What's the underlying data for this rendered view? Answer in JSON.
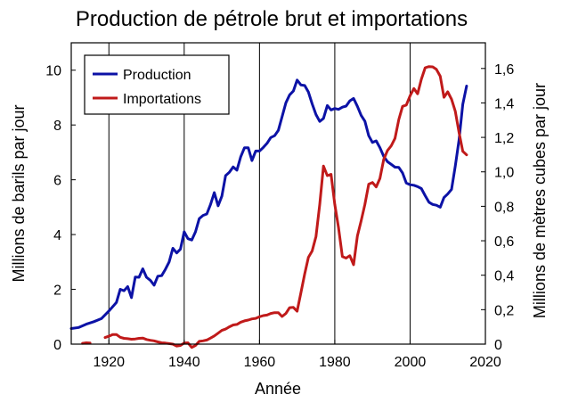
{
  "chart_data": {
    "type": "line",
    "title": "Production de pétrole brut et importations",
    "xlabel": "Année",
    "ylabel": "Millions de barils par jour",
    "ylabel_right": "Millions de mètres cubes par jour",
    "xlim": [
      1910,
      2020
    ],
    "ylim": [
      0,
      11
    ],
    "ylim_right": [
      0,
      1.749
    ],
    "x_ticks": [
      1920,
      1940,
      1960,
      1980,
      2000,
      2020
    ],
    "y_ticks": [
      0,
      2,
      4,
      6,
      8,
      10
    ],
    "y_ticks_right": [
      "0",
      "0,2",
      "0,4",
      "0,6",
      "0,8",
      "1,0",
      "1,2",
      "1,4",
      "1,6"
    ],
    "y_ticks_right_values": [
      0,
      0.2,
      0.4,
      0.6,
      0.8,
      1.0,
      1.2,
      1.4,
      1.6
    ],
    "grid": "x-only",
    "legend_position": "top-left",
    "series": [
      {
        "name": "Production",
        "color": "#0c12a6",
        "points": [
          [
            1910,
            0.57
          ],
          [
            1912,
            0.61
          ],
          [
            1914,
            0.73
          ],
          [
            1916,
            0.82
          ],
          [
            1918,
            0.93
          ],
          [
            1920,
            1.21
          ],
          [
            1922,
            1.52
          ],
          [
            1923,
            2.0
          ],
          [
            1924,
            1.95
          ],
          [
            1925,
            2.1
          ],
          [
            1926,
            1.7
          ],
          [
            1927,
            2.45
          ],
          [
            1928,
            2.44
          ],
          [
            1929,
            2.75
          ],
          [
            1930,
            2.44
          ],
          [
            1931,
            2.33
          ],
          [
            1932,
            2.15
          ],
          [
            1933,
            2.48
          ],
          [
            1934,
            2.5
          ],
          [
            1935,
            2.73
          ],
          [
            1936,
            3.0
          ],
          [
            1937,
            3.5
          ],
          [
            1938,
            3.33
          ],
          [
            1939,
            3.47
          ],
          [
            1940,
            4.1
          ],
          [
            1941,
            3.85
          ],
          [
            1942,
            3.8
          ],
          [
            1943,
            4.1
          ],
          [
            1944,
            4.58
          ],
          [
            1945,
            4.7
          ],
          [
            1946,
            4.75
          ],
          [
            1947,
            5.1
          ],
          [
            1948,
            5.53
          ],
          [
            1949,
            5.05
          ],
          [
            1950,
            5.4
          ],
          [
            1951,
            6.15
          ],
          [
            1952,
            6.27
          ],
          [
            1953,
            6.47
          ],
          [
            1954,
            6.35
          ],
          [
            1955,
            6.83
          ],
          [
            1956,
            7.17
          ],
          [
            1957,
            7.17
          ],
          [
            1958,
            6.7
          ],
          [
            1959,
            7.05
          ],
          [
            1960,
            7.05
          ],
          [
            1961,
            7.18
          ],
          [
            1962,
            7.33
          ],
          [
            1963,
            7.54
          ],
          [
            1964,
            7.61
          ],
          [
            1965,
            7.8
          ],
          [
            1966,
            8.3
          ],
          [
            1967,
            8.81
          ],
          [
            1968,
            9.1
          ],
          [
            1969,
            9.24
          ],
          [
            1970,
            9.64
          ],
          [
            1971,
            9.46
          ],
          [
            1972,
            9.44
          ],
          [
            1973,
            9.2
          ],
          [
            1974,
            8.77
          ],
          [
            1975,
            8.38
          ],
          [
            1976,
            8.13
          ],
          [
            1977,
            8.24
          ],
          [
            1978,
            8.71
          ],
          [
            1979,
            8.55
          ],
          [
            1980,
            8.6
          ],
          [
            1981,
            8.57
          ],
          [
            1982,
            8.65
          ],
          [
            1983,
            8.69
          ],
          [
            1984,
            8.88
          ],
          [
            1985,
            8.97
          ],
          [
            1986,
            8.68
          ],
          [
            1987,
            8.35
          ],
          [
            1988,
            8.14
          ],
          [
            1989,
            7.61
          ],
          [
            1990,
            7.36
          ],
          [
            1991,
            7.42
          ],
          [
            1992,
            7.17
          ],
          [
            1993,
            6.85
          ],
          [
            1994,
            6.66
          ],
          [
            1995,
            6.56
          ],
          [
            1996,
            6.46
          ],
          [
            1997,
            6.45
          ],
          [
            1998,
            6.25
          ],
          [
            1999,
            5.88
          ],
          [
            2000,
            5.82
          ],
          [
            2001,
            5.8
          ],
          [
            2002,
            5.75
          ],
          [
            2003,
            5.68
          ],
          [
            2004,
            5.42
          ],
          [
            2005,
            5.18
          ],
          [
            2006,
            5.1
          ],
          [
            2007,
            5.07
          ],
          [
            2008,
            5.0
          ],
          [
            2009,
            5.35
          ],
          [
            2010,
            5.48
          ],
          [
            2011,
            5.65
          ],
          [
            2012,
            6.5
          ],
          [
            2013,
            7.45
          ],
          [
            2014,
            8.75
          ],
          [
            2015,
            9.42
          ]
        ]
      },
      {
        "name": "Importations",
        "color": "#c01a1a",
        "points": [
          [
            1913,
            0.03
          ],
          [
            1914,
            0.05
          ],
          [
            1915,
            0.04
          ],
          [
            1919,
            0.24
          ],
          [
            1920,
            0.29
          ],
          [
            1921,
            0.35
          ],
          [
            1922,
            0.35
          ],
          [
            1923,
            0.25
          ],
          [
            1924,
            0.21
          ],
          [
            1925,
            0.2
          ],
          [
            1926,
            0.18
          ],
          [
            1927,
            0.19
          ],
          [
            1928,
            0.21
          ],
          [
            1929,
            0.22
          ],
          [
            1930,
            0.17
          ],
          [
            1931,
            0.14
          ],
          [
            1932,
            0.12
          ],
          [
            1933,
            0.08
          ],
          [
            1934,
            0.05
          ],
          [
            1935,
            0.04
          ],
          [
            1936,
            0.02
          ],
          [
            1937,
            0.0
          ],
          [
            1938,
            -0.07
          ],
          [
            1939,
            -0.05
          ],
          [
            1940,
            0.04
          ],
          [
            1941,
            0.05
          ],
          [
            1942,
            -0.12
          ],
          [
            1943,
            -0.05
          ],
          [
            1944,
            0.1
          ],
          [
            1945,
            0.12
          ],
          [
            1946,
            0.15
          ],
          [
            1947,
            0.22
          ],
          [
            1948,
            0.3
          ],
          [
            1949,
            0.4
          ],
          [
            1950,
            0.5
          ],
          [
            1951,
            0.55
          ],
          [
            1952,
            0.63
          ],
          [
            1953,
            0.7
          ],
          [
            1954,
            0.72
          ],
          [
            1955,
            0.8
          ],
          [
            1956,
            0.85
          ],
          [
            1957,
            0.88
          ],
          [
            1958,
            0.92
          ],
          [
            1959,
            0.94
          ],
          [
            1960,
            1.0
          ],
          [
            1961,
            1.04
          ],
          [
            1962,
            1.06
          ],
          [
            1963,
            1.12
          ],
          [
            1964,
            1.15
          ],
          [
            1965,
            1.15
          ],
          [
            1966,
            1.01
          ],
          [
            1967,
            1.12
          ],
          [
            1968,
            1.33
          ],
          [
            1969,
            1.34
          ],
          [
            1970,
            1.2
          ],
          [
            1971,
            1.88
          ],
          [
            1972,
            2.56
          ],
          [
            1973,
            3.17
          ],
          [
            1974,
            3.4
          ],
          [
            1975,
            3.93
          ],
          [
            1976,
            5.1
          ],
          [
            1977,
            6.5
          ],
          [
            1978,
            6.15
          ],
          [
            1979,
            6.2
          ],
          [
            1980,
            5.1
          ],
          [
            1981,
            4.25
          ],
          [
            1982,
            3.2
          ],
          [
            1983,
            3.14
          ],
          [
            1984,
            3.23
          ],
          [
            1985,
            2.9
          ],
          [
            1986,
            3.95
          ],
          [
            1987,
            4.5
          ],
          [
            1988,
            5.1
          ],
          [
            1989,
            5.84
          ],
          [
            1990,
            5.9
          ],
          [
            1991,
            5.74
          ],
          [
            1992,
            6.05
          ],
          [
            1993,
            6.75
          ],
          [
            1994,
            7.07
          ],
          [
            1995,
            7.24
          ],
          [
            1996,
            7.51
          ],
          [
            1997,
            8.2
          ],
          [
            1998,
            8.68
          ],
          [
            1999,
            8.73
          ],
          [
            2000,
            9.07
          ],
          [
            2001,
            9.33
          ],
          [
            2002,
            9.14
          ],
          [
            2003,
            9.67
          ],
          [
            2004,
            10.09
          ],
          [
            2005,
            10.13
          ],
          [
            2006,
            10.12
          ],
          [
            2007,
            10.03
          ],
          [
            2008,
            9.78
          ],
          [
            2009,
            9.01
          ],
          [
            2010,
            9.21
          ],
          [
            2011,
            8.94
          ],
          [
            2012,
            8.5
          ],
          [
            2013,
            7.73
          ],
          [
            2014,
            7.04
          ],
          [
            2015,
            6.91
          ]
        ]
      }
    ]
  }
}
